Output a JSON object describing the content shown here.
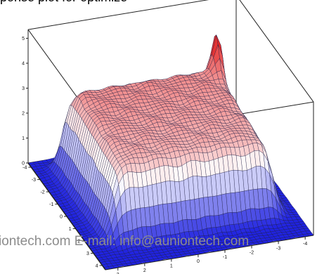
{
  "header": {
    "caption": "ponse plot for optimize"
  },
  "watermark": {
    "text": "iontech.com  E-mail: info@auniontech.com"
  },
  "chart_data": {
    "type": "surface3d",
    "zlim": [
      0,
      5
    ],
    "z_ticks": [
      "0",
      "1",
      "2",
      "3",
      "4",
      "5"
    ],
    "y_ticks": [
      "-4",
      "-3",
      "-2",
      "-1",
      "0",
      "1",
      "2",
      "3",
      "4"
    ],
    "x_ticks": [
      "3",
      "2",
      "1",
      "0",
      "-1",
      "-2",
      "-3",
      "-4"
    ],
    "surface": {
      "plateau_height": 3.1,
      "peak_height": 4.4,
      "description_colormap": [
        "#1a1ae6",
        "#ffffff",
        "#e62020"
      ]
    },
    "colors": {
      "low": "#1f22e0",
      "mid": "#ffffff",
      "high": "#e21b1b",
      "frame": "#222222"
    }
  }
}
